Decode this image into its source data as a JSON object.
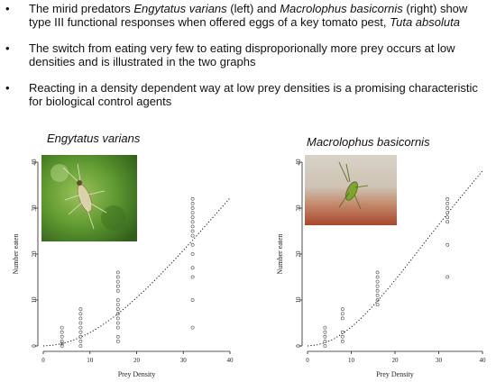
{
  "bullets": [
    {
      "parts": [
        {
          "t": "The mirid predators ",
          "i": false
        },
        {
          "t": "Engytatus varians",
          "i": true
        },
        {
          "t": " (left) and ",
          "i": false
        },
        {
          "t": "Macrolophus basicornis",
          "i": true
        },
        {
          "t": " (right) show type III functional responses when offered eggs of a key tomato pest, ",
          "i": false
        },
        {
          "t": "Tuta absoluta",
          "i": true
        }
      ]
    },
    {
      "parts": [
        {
          "t": "The switch from eating very few to eating disproporionally more prey occurs at low densities and is illustrated in the two graphs",
          "i": false
        }
      ]
    },
    {
      "parts": [
        {
          "t": "Reacting in a density dependent way at low prey densities is a promising characteristic for biological control agents",
          "i": false
        }
      ]
    }
  ],
  "bullet_marker": "•",
  "chart_data": [
    {
      "type": "scatter",
      "title": "Engytatus varians",
      "xlabel": "Prey Density",
      "ylabel": "Number eaten",
      "xlim": [
        0,
        40
      ],
      "ylim": [
        0,
        40
      ],
      "xticks": [
        0,
        10,
        20,
        30,
        40
      ],
      "yticks": [
        0,
        10,
        20,
        30,
        40
      ],
      "points": {
        "x4": [
          0,
          0.5,
          1,
          2,
          3,
          4
        ],
        "x8": [
          0,
          1,
          2,
          3,
          4,
          5,
          6,
          7,
          8
        ],
        "x16": [
          1,
          2,
          4,
          5,
          6,
          7,
          8,
          9,
          10,
          12,
          13,
          14,
          15,
          16
        ],
        "x32": [
          4,
          10,
          15,
          17,
          20,
          22,
          24,
          25,
          26,
          27,
          28,
          29,
          30,
          31,
          32
        ]
      },
      "fit_curve": {
        "style": "dotted",
        "x": [
          0,
          2,
          4,
          6,
          8,
          10,
          12,
          14,
          16,
          18,
          20,
          22,
          24,
          26,
          28,
          30,
          32,
          34,
          36,
          38,
          40
        ],
        "y": [
          0,
          0.15,
          0.5,
          1.1,
          1.9,
          2.9,
          4.1,
          5.5,
          7.0,
          8.7,
          10.5,
          12.4,
          14.4,
          16.5,
          18.6,
          20.8,
          23.0,
          25.3,
          27.6,
          29.9,
          32.2
        ]
      }
    },
    {
      "type": "scatter",
      "title": "Macrolophus basicornis",
      "xlabel": "Prey Density",
      "ylabel": "Number eaten",
      "xlim": [
        0,
        40
      ],
      "ylim": [
        0,
        40
      ],
      "xticks": [
        0,
        10,
        20,
        30,
        40
      ],
      "yticks": [
        0,
        10,
        20,
        30,
        40
      ],
      "points": {
        "x4": [
          0,
          1,
          2,
          3,
          4
        ],
        "x8": [
          1,
          2,
          3,
          6,
          7,
          8
        ],
        "x16": [
          9,
          10,
          11,
          12,
          13,
          14,
          15,
          16
        ],
        "x32": [
          15,
          22,
          27,
          28,
          29,
          30,
          31,
          32
        ]
      },
      "fit_curve": {
        "style": "dotted",
        "x": [
          0,
          2,
          4,
          6,
          8,
          10,
          12,
          14,
          16,
          18,
          20,
          22,
          24,
          26,
          28,
          30,
          32,
          34,
          36,
          38,
          40
        ],
        "y": [
          0,
          0.2,
          0.7,
          1.5,
          2.7,
          4.1,
          5.8,
          7.7,
          9.8,
          12.0,
          14.3,
          16.7,
          19.1,
          21.6,
          24.0,
          26.4,
          28.8,
          31.2,
          33.5,
          35.8,
          38.1
        ]
      }
    }
  ],
  "colors": {
    "point": "#444444",
    "axis": "#222222",
    "leaf_green": "#4f8a2a",
    "bg_red": "#b55a3c"
  },
  "images": {
    "left": "photo of Engytatus varians on leaf",
    "right": "photo of Macrolophus basicornis"
  }
}
